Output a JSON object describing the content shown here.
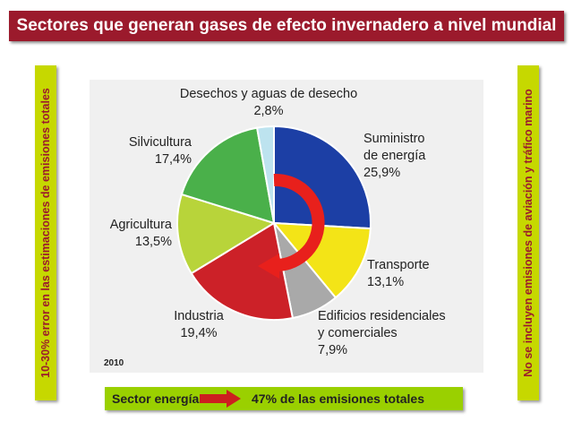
{
  "title": "Sectores que generan gases de efecto invernadero a nivel mundial",
  "left_note": "10-30% error en las estimaciones de emisiones totales",
  "right_note": "No se incluyen emisiones de aviación y tráfico marino",
  "year": "2010",
  "summary": {
    "left": "Sector energía",
    "right": "47% de las emisiones totales",
    "arrow_icon": "right-arrow-icon"
  },
  "colors": {
    "title_bg": "#9b1a2c",
    "side_bar": "#c6d800",
    "summary_bar": "#9ad000",
    "swirl_arrow": "#e8201c"
  },
  "chart_data": {
    "type": "pie",
    "start": "top, clockwise",
    "slices": [
      {
        "name": "Suministro de energía",
        "name_lines": [
          "Suministro",
          "de energía"
        ],
        "value": 25.9,
        "label": "25,9%",
        "color": "#1c3fa5"
      },
      {
        "name": "Transporte",
        "name_lines": [
          "Transporte"
        ],
        "value": 13.1,
        "label": "13,1%",
        "color": "#f3e417"
      },
      {
        "name": "Edificios residenciales y comerciales",
        "name_lines": [
          "Edificios residenciales",
          "y comerciales"
        ],
        "value": 7.9,
        "label": "7,9%",
        "color": "#a9a9a9"
      },
      {
        "name": "Industria",
        "name_lines": [
          "Industria"
        ],
        "value": 19.4,
        "label": "19,4%",
        "color": "#cc2128"
      },
      {
        "name": "Agricultura",
        "name_lines": [
          "Agricultura"
        ],
        "value": 13.5,
        "label": "13,5%",
        "color": "#b8d43a"
      },
      {
        "name": "Silvicultura",
        "name_lines": [
          "Silvicultura"
        ],
        "value": 17.4,
        "label": "17,4%",
        "color": "#4ab04a"
      },
      {
        "name": "Desechos y aguas de desecho",
        "name_lines": [
          "Desechos y aguas de desecho"
        ],
        "value": 2.8,
        "label": "2,8%",
        "color": "#bde3ef"
      }
    ]
  }
}
